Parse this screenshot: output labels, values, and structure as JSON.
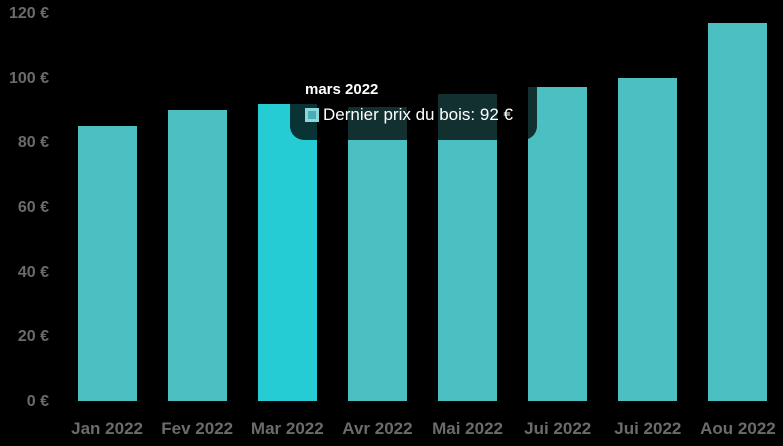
{
  "chart_data": {
    "type": "bar",
    "title": "",
    "xlabel": "",
    "ylabel": "",
    "categories": [
      "Jan 2022",
      "Fev 2022",
      "Mar 2022",
      "Avr 2022",
      "Mai 2022",
      "Jui 2022",
      "Jui 2022",
      "Aou 2022"
    ],
    "values": [
      85,
      90,
      92,
      91,
      95,
      97,
      100,
      117
    ],
    "series_name": "Dernier prix du bois",
    "ylim": [
      0,
      120
    ],
    "y_ticks": [
      {
        "value": 0,
        "label": "0 €"
      },
      {
        "value": 20,
        "label": "20 €"
      },
      {
        "value": 40,
        "label": "40 €"
      },
      {
        "value": 60,
        "label": "60 €"
      },
      {
        "value": 80,
        "label": "80 €"
      },
      {
        "value": 100,
        "label": "100 €"
      },
      {
        "value": 120,
        "label": "120 €"
      }
    ],
    "grid": false,
    "legend_position": "none",
    "highlighted_index": 2,
    "highlighted_category": "Mar 2022"
  },
  "tooltip": {
    "title": "mars 2022",
    "label": "Dernier prix du bois",
    "separator": ": ",
    "value": "92 €",
    "swatch_icon": "series-color-square"
  },
  "colors": {
    "background": "#000000",
    "bar": "#4CBFC2",
    "bar_hover": "#26CCD4",
    "axis_label": "#6B6B6B",
    "tooltip_bg": "rgba(0,0,0,0.75)",
    "tooltip_text": "#FFFFFF",
    "swatch_border": "#8AD8DB",
    "swatch_fill": "#48AEB3"
  }
}
